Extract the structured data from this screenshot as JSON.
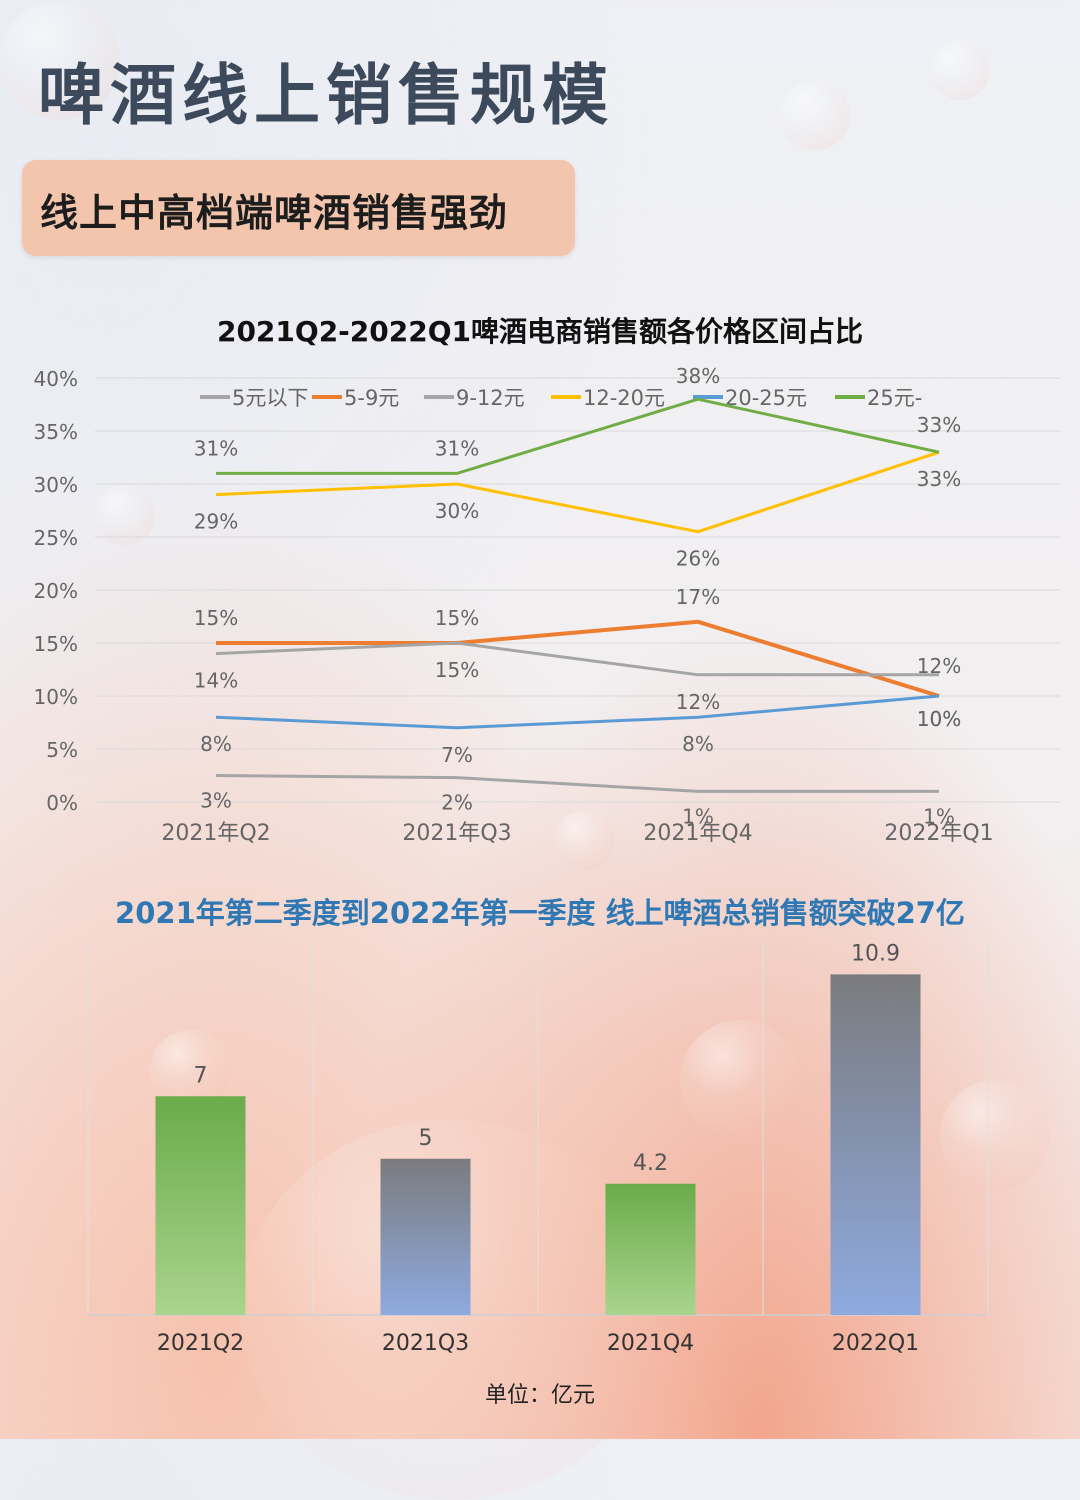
{
  "page": {
    "title": "啤酒线上销售规模",
    "subtitle": "线上中高档端啤酒销售强劲",
    "line_chart_title": "2021Q2-2022Q1啤酒电商销售额各价格区间占比",
    "bar_chart_title": "2021年第二季度到2022年第一季度 线上啤酒总销售额突破27亿",
    "unit_label": "单位：亿元"
  },
  "chart_data": [
    {
      "type": "line",
      "title": "2021Q2-2022Q1啤酒电商销售额各价格区间占比",
      "categories": [
        "2021年Q2",
        "2021年Q3",
        "2021年Q4",
        "2022年Q1"
      ],
      "yticks": [
        "0%",
        "5%",
        "10%",
        "15%",
        "20%",
        "25%",
        "30%",
        "35%",
        "40%"
      ],
      "ylim": [
        0,
        40
      ],
      "grid": true,
      "legend": "top",
      "series": [
        {
          "name": "5元以下",
          "color": "#a5a5a5",
          "values": [
            2.5,
            2.3,
            1,
            1
          ],
          "labels": [
            "3%",
            "2%",
            "1%",
            "1%"
          ]
        },
        {
          "name": "5-9元",
          "color": "#ed7d31",
          "values": [
            15,
            15,
            17,
            10
          ],
          "labels": [
            "15%",
            "15%",
            "17%",
            "10%"
          ]
        },
        {
          "name": "9-12元",
          "color": "#a5a5a5",
          "values": [
            14,
            15,
            12,
            12
          ],
          "labels": [
            "14%",
            "15%",
            "12%",
            "12%"
          ]
        },
        {
          "name": "12-20元",
          "color": "#ffc000",
          "values": [
            29,
            30,
            25.5,
            33
          ],
          "labels": [
            "29%",
            "30%",
            "26%",
            "33%"
          ]
        },
        {
          "name": "20-25元",
          "color": "#5b9bd5",
          "values": [
            8,
            7,
            8,
            10
          ],
          "labels": [
            "8%",
            "7%",
            "8%",
            "10%"
          ]
        },
        {
          "name": "25元-",
          "color": "#70ad47",
          "values": [
            31,
            31,
            38,
            33
          ],
          "labels": [
            "31%",
            "31%",
            "38%",
            "33%"
          ]
        }
      ]
    },
    {
      "type": "bar",
      "title": "2021年第二季度到2022年第一季度 线上啤酒总销售额突破27亿",
      "categories": [
        "2021Q2",
        "2021Q3",
        "2021Q4",
        "2022Q1"
      ],
      "values": [
        7,
        5,
        4.2,
        10.9
      ],
      "value_labels": [
        "7",
        "5",
        "4.2",
        "10.9"
      ],
      "fills": [
        "green",
        "bluegray",
        "green",
        "bluegray"
      ],
      "ylim": [
        0,
        12
      ],
      "unit": "单位：亿元"
    }
  ]
}
